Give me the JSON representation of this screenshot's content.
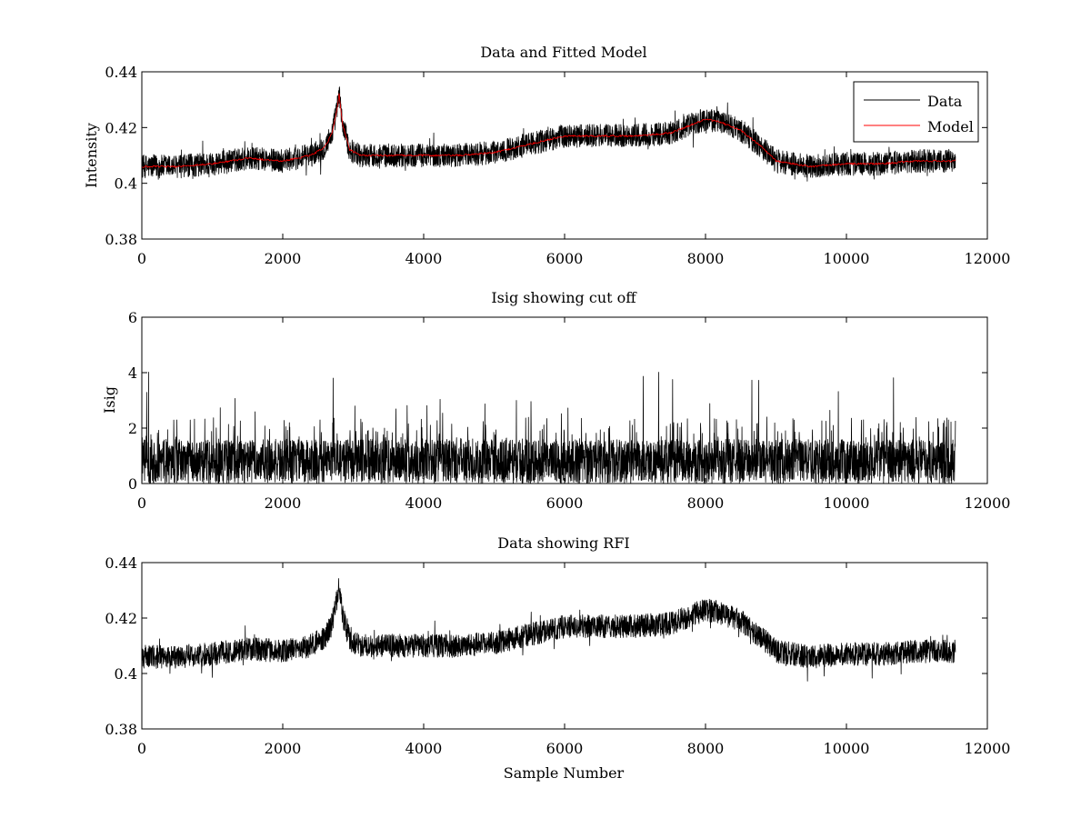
{
  "figure": {
    "background": "#ffffff",
    "axis_color": "#000000"
  },
  "chart_data": [
    {
      "type": "line",
      "id": "top",
      "title": "Data and Fitted Model",
      "xlabel": "",
      "ylabel": "Intensity",
      "xlim": [
        0,
        12000
      ],
      "ylim": [
        0.38,
        0.44
      ],
      "xticks": [
        0,
        2000,
        4000,
        6000,
        8000,
        10000,
        12000
      ],
      "xtick_labels": [
        "0",
        "2000",
        "4000",
        "6000",
        "8000",
        "10000",
        "12000"
      ],
      "yticks": [
        0.38,
        0.4,
        0.42,
        0.44
      ],
      "ytick_labels": [
        "0.38",
        "0.4",
        "0.42",
        "0.44"
      ],
      "grid": false,
      "legend": {
        "location": "top-right",
        "entries": [
          "Data",
          "Model"
        ]
      },
      "series": [
        {
          "name": "Data",
          "color": "#000000",
          "style": "noisy",
          "n_samples": 11550,
          "noise_half_range": 0.0042,
          "spike_max": 0.006,
          "envelope_x": [
            0,
            500,
            1000,
            1500,
            2000,
            2400,
            2600,
            2700,
            2780,
            2800,
            2850,
            2950,
            3100,
            3500,
            4000,
            4500,
            5000,
            5500,
            6000,
            6500,
            7000,
            7500,
            7800,
            8000,
            8200,
            8500,
            8800,
            9000,
            9500,
            10000,
            10500,
            11000,
            11550
          ],
          "envelope_y": [
            0.406,
            0.406,
            0.407,
            0.409,
            0.408,
            0.41,
            0.413,
            0.418,
            0.428,
            0.432,
            0.421,
            0.412,
            0.41,
            0.41,
            0.41,
            0.41,
            0.411,
            0.414,
            0.417,
            0.417,
            0.417,
            0.418,
            0.421,
            0.423,
            0.422,
            0.419,
            0.413,
            0.408,
            0.406,
            0.407,
            0.407,
            0.408,
            0.408
          ]
        },
        {
          "name": "Model",
          "color": "#ff0000",
          "style": "smooth",
          "x": [
            0,
            500,
            1000,
            1500,
            2000,
            2400,
            2600,
            2700,
            2780,
            2800,
            2850,
            2950,
            3100,
            3500,
            4000,
            4500,
            5000,
            5500,
            6000,
            6500,
            7000,
            7500,
            7800,
            8000,
            8200,
            8500,
            8800,
            9000,
            9500,
            10000,
            10500,
            11000,
            11550
          ],
          "y": [
            0.406,
            0.406,
            0.407,
            0.409,
            0.408,
            0.41,
            0.413,
            0.418,
            0.428,
            0.432,
            0.421,
            0.412,
            0.41,
            0.41,
            0.41,
            0.41,
            0.411,
            0.414,
            0.417,
            0.417,
            0.417,
            0.418,
            0.421,
            0.423,
            0.422,
            0.419,
            0.413,
            0.408,
            0.406,
            0.407,
            0.407,
            0.408,
            0.408
          ]
        }
      ]
    },
    {
      "type": "line",
      "id": "middle",
      "title": "Isig showing cut off",
      "xlabel": "",
      "ylabel": "Isig",
      "xlim": [
        0,
        12000
      ],
      "ylim": [
        0,
        6
      ],
      "xticks": [
        0,
        2000,
        4000,
        6000,
        8000,
        10000,
        12000
      ],
      "xtick_labels": [
        "0",
        "2000",
        "4000",
        "6000",
        "8000",
        "10000",
        "12000"
      ],
      "yticks": [
        0,
        2,
        4,
        6
      ],
      "ytick_labels": [
        "0",
        "2",
        "4",
        "6"
      ],
      "grid": false,
      "series": [
        {
          "name": "Isig",
          "color": "#000000",
          "style": "isig",
          "n_samples": 11550,
          "typical_max": 1.6,
          "peak_max": 4.1
        }
      ]
    },
    {
      "type": "line",
      "id": "bottom",
      "title": "Data showing RFI",
      "xlabel": "Sample Number",
      "ylabel": "",
      "xlim": [
        0,
        12000
      ],
      "ylim": [
        0.38,
        0.44
      ],
      "xticks": [
        0,
        2000,
        4000,
        6000,
        8000,
        10000,
        12000
      ],
      "xtick_labels": [
        "0",
        "2000",
        "4000",
        "6000",
        "8000",
        "10000",
        "12000"
      ],
      "yticks": [
        0.38,
        0.4,
        0.42,
        0.44
      ],
      "ytick_labels": [
        "0.38",
        "0.4",
        "0.42",
        "0.44"
      ],
      "grid": false,
      "series": [
        {
          "name": "Data",
          "color": "#000000",
          "style": "noisy",
          "n_samples": 11550,
          "noise_half_range": 0.0042,
          "spike_max": 0.006,
          "envelope_x": [
            0,
            500,
            1000,
            1500,
            2000,
            2400,
            2600,
            2700,
            2780,
            2800,
            2850,
            2950,
            3100,
            3500,
            4000,
            4500,
            5000,
            5500,
            6000,
            6500,
            7000,
            7500,
            7800,
            8000,
            8200,
            8500,
            8800,
            9000,
            9500,
            10000,
            10500,
            11000,
            11550
          ],
          "envelope_y": [
            0.406,
            0.406,
            0.407,
            0.409,
            0.408,
            0.41,
            0.413,
            0.418,
            0.428,
            0.432,
            0.421,
            0.412,
            0.41,
            0.41,
            0.41,
            0.41,
            0.411,
            0.414,
            0.417,
            0.417,
            0.417,
            0.418,
            0.421,
            0.423,
            0.422,
            0.419,
            0.413,
            0.408,
            0.406,
            0.407,
            0.407,
            0.408,
            0.408
          ]
        }
      ]
    }
  ]
}
